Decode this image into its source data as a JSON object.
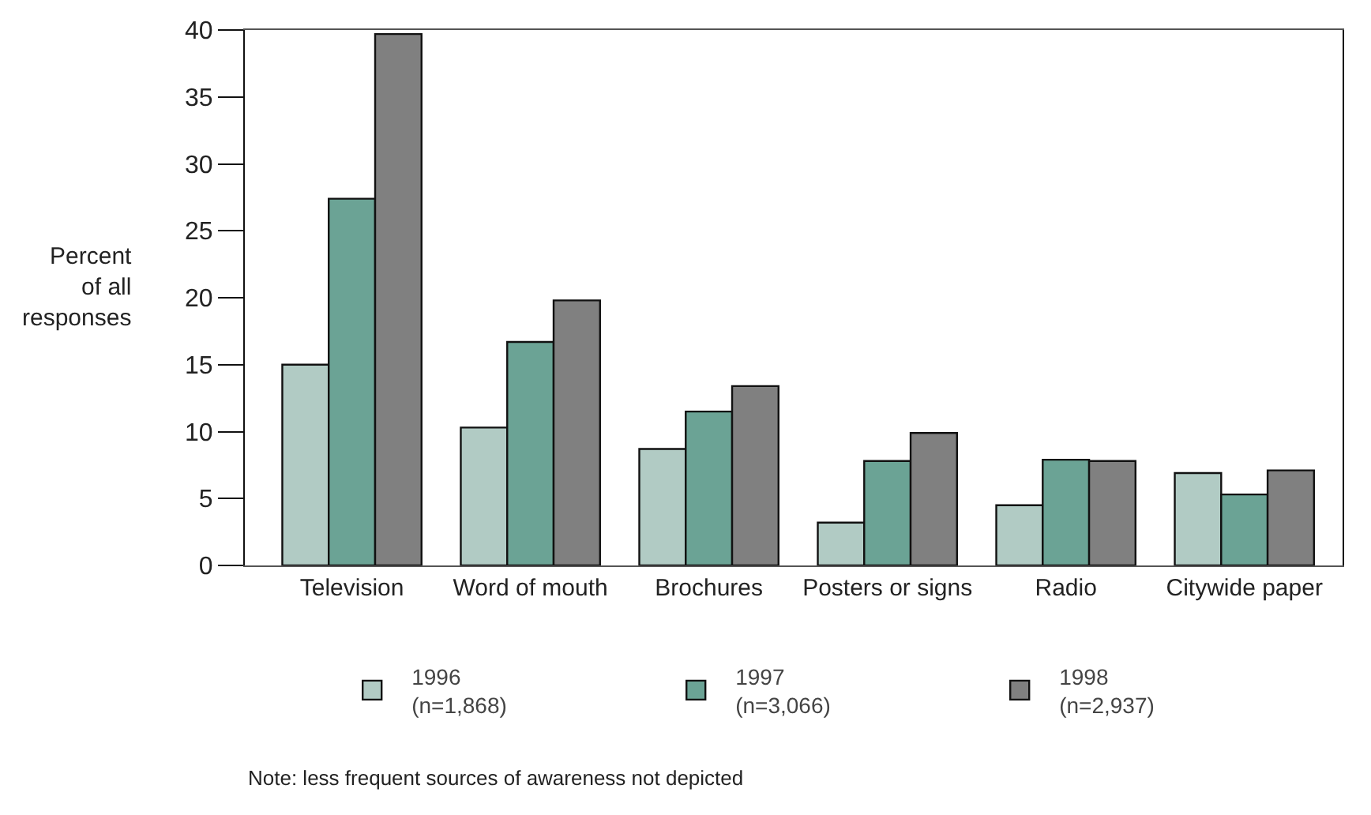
{
  "chart_data": {
    "type": "bar",
    "ylabel": "Percent\nof all\nresponses",
    "categories": [
      "Television",
      "Word of mouth",
      "Brochures",
      "Posters or signs",
      "Radio",
      "Citywide paper"
    ],
    "series": [
      {
        "name": "1996\n(n=1,868)",
        "color": "#b1cbc4",
        "values": [
          15.0,
          10.3,
          8.7,
          3.2,
          4.5,
          6.9
        ]
      },
      {
        "name": "1997\n(n=3,066)",
        "color": "#6ba395",
        "values": [
          27.4,
          16.7,
          11.5,
          7.8,
          7.9,
          5.3
        ]
      },
      {
        "name": "1998\n(n=2,937)",
        "color": "#808080",
        "values": [
          39.7,
          19.8,
          13.4,
          9.9,
          7.8,
          7.1
        ]
      }
    ],
    "ylim": [
      0,
      40
    ],
    "yticks": [
      0,
      5,
      10,
      15,
      20,
      25,
      30,
      35,
      40
    ],
    "grid": false,
    "legend": "bottom",
    "annotations": [
      "Note: less frequent sources of awareness not depicted"
    ]
  }
}
